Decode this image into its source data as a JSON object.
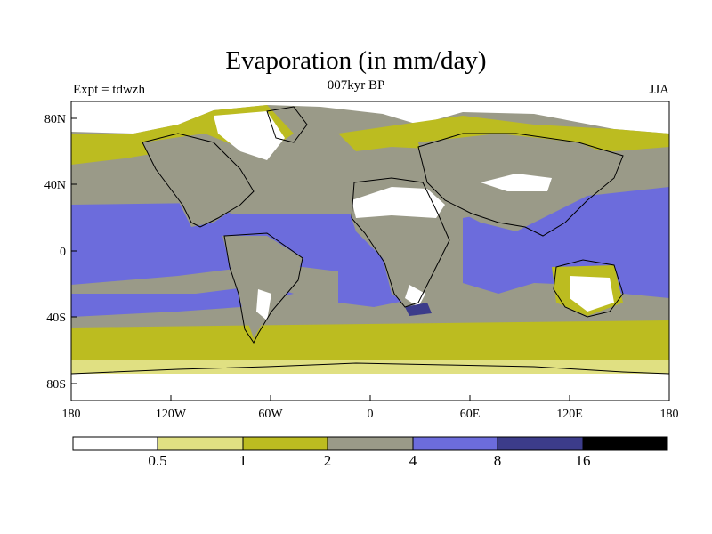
{
  "header": {
    "title": "Evaporation (in mm/day)",
    "subtitle": "007kyr BP",
    "left_label": "Expt = tdwzh",
    "right_label": "JJA"
  },
  "axes": {
    "x_ticks": [
      "180",
      "120W",
      "60W",
      "0",
      "60E",
      "120E",
      "180"
    ],
    "y_ticks": [
      "80N",
      "40N",
      "0",
      "40S",
      "80S"
    ]
  },
  "colorbar": {
    "colors": [
      "#ffffff",
      "#e0e082",
      "#bcbc20",
      "#9a9a88",
      "#6c6cdc",
      "#3c3c8a",
      "#000000"
    ],
    "labels": [
      "0.5",
      "1",
      "2",
      "4",
      "8",
      "16"
    ]
  }
}
